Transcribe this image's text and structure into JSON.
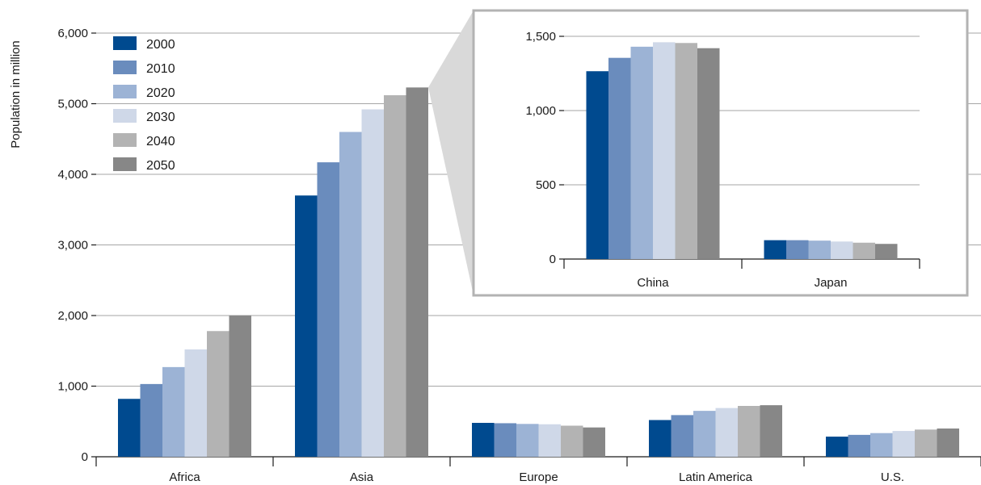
{
  "chart_data": [
    {
      "type": "bar",
      "title": "",
      "xlabel": "",
      "ylabel": "Population in million",
      "ylim": [
        0,
        6000
      ],
      "yticks": [
        0,
        1000,
        2000,
        3000,
        4000,
        5000,
        6000
      ],
      "ytick_labels": [
        "0",
        "1,000",
        "2,000",
        "3,000",
        "4,000",
        "5,000",
        "6,000"
      ],
      "grid": true,
      "legend_position": "top-left",
      "categories": [
        "Africa",
        "Asia",
        "Europe",
        "Latin America",
        "U.S."
      ],
      "series": [
        {
          "name": "2000",
          "color": "#004a8f",
          "values": [
            820,
            3700,
            480,
            520,
            285
          ]
        },
        {
          "name": "2010",
          "color": "#6a8cbd",
          "values": [
            1030,
            4170,
            475,
            590,
            310
          ]
        },
        {
          "name": "2020",
          "color": "#9cb3d5",
          "values": [
            1270,
            4600,
            465,
            650,
            335
          ]
        },
        {
          "name": "2030",
          "color": "#cfd8e8",
          "values": [
            1520,
            4920,
            460,
            690,
            365
          ]
        },
        {
          "name": "2040",
          "color": "#b3b3b3",
          "values": [
            1780,
            5120,
            440,
            720,
            385
          ]
        },
        {
          "name": "2050",
          "color": "#878787",
          "values": [
            2000,
            5230,
            415,
            730,
            400
          ]
        }
      ]
    },
    {
      "type": "bar",
      "title": "",
      "xlabel": "",
      "ylabel": "",
      "ylim": [
        0,
        1500
      ],
      "yticks": [
        0,
        500,
        1000,
        1500
      ],
      "ytick_labels": [
        "0",
        "500",
        "1,000",
        "1,500"
      ],
      "grid": true,
      "categories": [
        "China",
        "Japan"
      ],
      "series": [
        {
          "name": "2000",
          "color": "#004a8f",
          "values": [
            1265,
            127
          ]
        },
        {
          "name": "2010",
          "color": "#6a8cbd",
          "values": [
            1355,
            127
          ]
        },
        {
          "name": "2020",
          "color": "#9cb3d5",
          "values": [
            1430,
            124
          ]
        },
        {
          "name": "2030",
          "color": "#cfd8e8",
          "values": [
            1460,
            118
          ]
        },
        {
          "name": "2040",
          "color": "#b3b3b3",
          "values": [
            1455,
            110
          ]
        },
        {
          "name": "2050",
          "color": "#878787",
          "values": [
            1420,
            102
          ]
        }
      ]
    }
  ]
}
